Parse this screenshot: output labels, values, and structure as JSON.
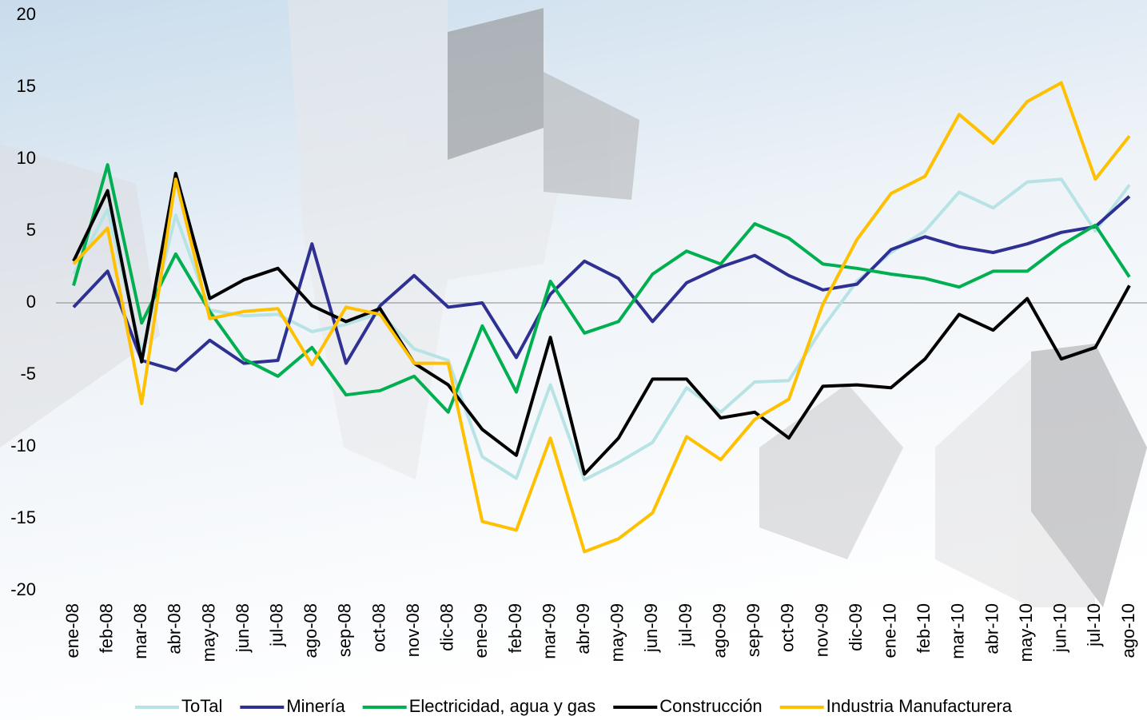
{
  "chart_data": {
    "type": "line",
    "categories": [
      "ene-08",
      "feb-08",
      "mar-08",
      "abr-08",
      "may-08",
      "jun-08",
      "jul-08",
      "ago-08",
      "sep-08",
      "oct-08",
      "nov-08",
      "dic-08",
      "ene-09",
      "feb-09",
      "mar-09",
      "abr-09",
      "may-09",
      "jun-09",
      "jul-09",
      "ago-09",
      "sep-09",
      "oct-09",
      "nov-09",
      "dic-09",
      "ene-10",
      "feb-10",
      "mar-10",
      "abr-10",
      "may-10",
      "jun-10",
      "jul-10",
      "ago-10"
    ],
    "series": [
      {
        "name": "ToTal",
        "color": "#b7e3e4",
        "values": [
          2,
          6.5,
          -3.5,
          6.1,
          -0.5,
          -0.9,
          -0.8,
          -2,
          -1.5,
          -0.7,
          -3.2,
          -4,
          -10.7,
          -12.2,
          -5.7,
          -12.3,
          -11.1,
          -9.7,
          -5.9,
          -7.6,
          -5.5,
          -5.4,
          -1.7,
          1.5,
          3.5,
          5,
          7.7,
          6.6,
          8.4,
          8.6,
          5,
          8.2
        ]
      },
      {
        "name": "Minería",
        "color": "#2e3192",
        "values": [
          -0.3,
          2.2,
          -4,
          -4.7,
          -2.6,
          -4.2,
          -4,
          4.1,
          -4.2,
          -0.2,
          1.9,
          -0.3,
          0,
          -3.8,
          0.6,
          2.9,
          1.7,
          -1.3,
          1.4,
          2.5,
          3.3,
          1.9,
          0.9,
          1.3,
          3.7,
          4.6,
          3.9,
          3.5,
          4.1,
          4.9,
          5.3,
          7.4
        ]
      },
      {
        "name": "Electricidad, agua y gas",
        "color": "#00b050",
        "values": [
          1.2,
          9.6,
          -1.4,
          3.4,
          -0.6,
          -3.9,
          -5.1,
          -3.1,
          -6.4,
          -6.1,
          -5.1,
          -7.6,
          -1.6,
          -6.2,
          1.5,
          -2.1,
          -1.3,
          2,
          3.6,
          2.7,
          5.5,
          4.5,
          2.7,
          2.4,
          2,
          1.7,
          1.1,
          2.2,
          2.2,
          4,
          5.4,
          1.8
        ]
      },
      {
        "name": "Construcción",
        "color": "#000000",
        "values": [
          2.9,
          7.8,
          -4.1,
          9,
          0.3,
          1.6,
          2.4,
          -0.2,
          -1.3,
          -0.4,
          -4.2,
          -5.7,
          -8.8,
          -10.6,
          -2.4,
          -11.9,
          -9.4,
          -5.3,
          -5.3,
          -8,
          -7.6,
          -9.4,
          -5.8,
          -5.7,
          -5.9,
          -3.9,
          -0.8,
          -1.9,
          0.3,
          -3.9,
          -3.1,
          1.2
        ]
      },
      {
        "name": "Industria Manufacturera",
        "color": "#ffc000",
        "values": [
          2.7,
          5.2,
          -7,
          8.6,
          -1.1,
          -0.6,
          -0.4,
          -4.3,
          -0.3,
          -0.8,
          -4.2,
          -4.2,
          -15.2,
          -15.8,
          -9.4,
          -17.3,
          -16.4,
          -14.6,
          -9.3,
          -10.9,
          -8.1,
          -6.7,
          -0.1,
          4.4,
          7.6,
          8.8,
          13.1,
          11.1,
          14,
          15.3,
          8.6,
          11.6
        ]
      }
    ],
    "ylim": [
      -20,
      20
    ],
    "yticks": [
      -20,
      -15,
      -10,
      -5,
      0,
      5,
      10,
      15,
      20
    ],
    "legend": "bottom"
  }
}
